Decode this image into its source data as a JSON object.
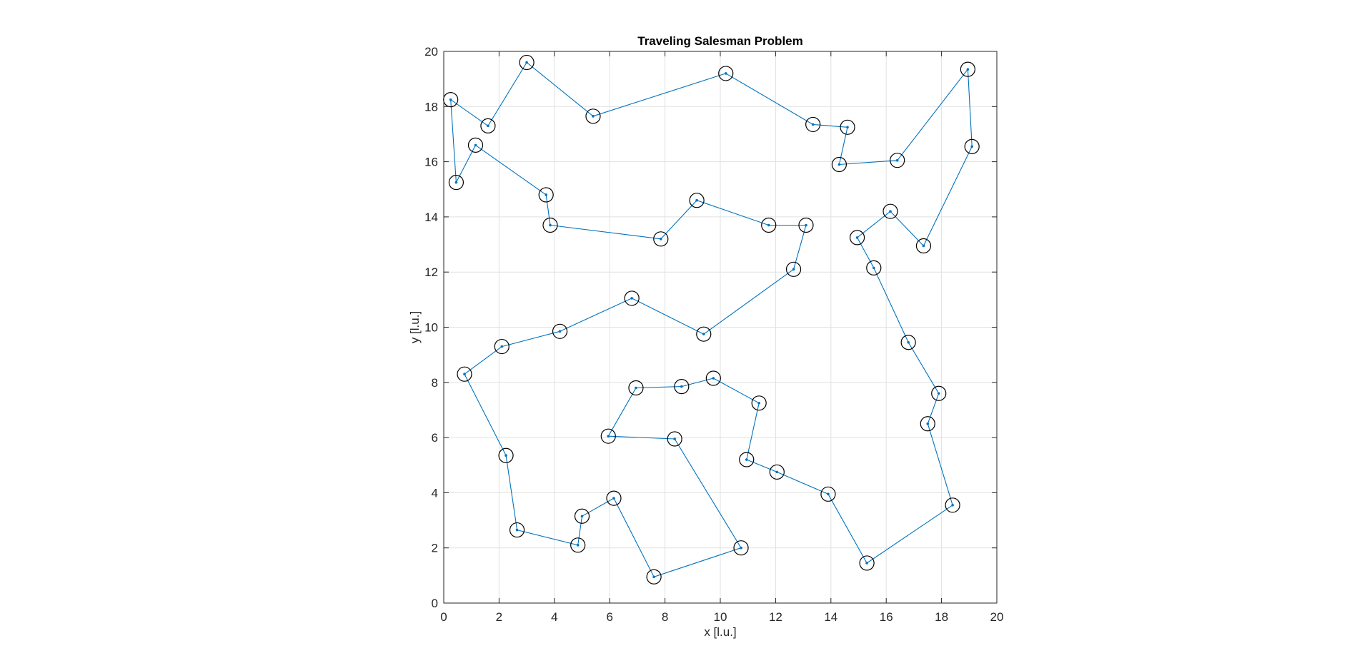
{
  "chart_data": {
    "type": "line",
    "title": "Traveling Salesman Problem",
    "xlabel": "x [l.u.]",
    "ylabel": "y [l.u.]",
    "xlim": [
      0,
      20
    ],
    "ylim": [
      0,
      20
    ],
    "xticks": [
      0,
      2,
      4,
      6,
      8,
      10,
      12,
      14,
      16,
      18,
      20
    ],
    "yticks": [
      0,
      2,
      4,
      6,
      8,
      10,
      12,
      14,
      16,
      18,
      20
    ],
    "grid": true,
    "colors": {
      "route": "#0072BD",
      "city_marker": "#000000",
      "city_dot": "#0072BD",
      "grid": "#e1e1e1",
      "axis": "#262626"
    },
    "series": [
      {
        "points": [
          [
            0.25,
            18.25
          ],
          [
            0.45,
            15.25
          ],
          [
            1.15,
            16.6
          ],
          [
            3.7,
            14.8
          ],
          [
            3.85,
            13.7
          ],
          [
            7.85,
            13.2
          ],
          [
            9.15,
            14.6
          ],
          [
            11.75,
            13.7
          ],
          [
            13.1,
            13.7
          ],
          [
            12.65,
            12.1
          ],
          [
            9.4,
            9.75
          ],
          [
            6.8,
            11.05
          ],
          [
            4.2,
            9.85
          ],
          [
            2.1,
            9.3
          ],
          [
            0.75,
            8.3
          ],
          [
            2.25,
            5.35
          ],
          [
            2.65,
            2.65
          ],
          [
            4.85,
            2.1
          ],
          [
            5.0,
            3.15
          ],
          [
            6.15,
            3.8
          ],
          [
            7.6,
            0.95
          ],
          [
            10.75,
            2.0
          ],
          [
            8.35,
            5.95
          ],
          [
            5.95,
            6.05
          ],
          [
            6.95,
            7.8
          ],
          [
            8.6,
            7.85
          ],
          [
            9.75,
            8.15
          ],
          [
            11.4,
            7.25
          ],
          [
            10.95,
            5.2
          ],
          [
            12.05,
            4.75
          ],
          [
            13.9,
            3.95
          ],
          [
            15.3,
            1.45
          ],
          [
            18.4,
            3.55
          ],
          [
            17.5,
            6.5
          ],
          [
            17.9,
            7.6
          ],
          [
            16.8,
            9.45
          ],
          [
            15.55,
            12.15
          ],
          [
            14.95,
            13.25
          ],
          [
            16.15,
            14.2
          ],
          [
            17.35,
            12.95
          ],
          [
            19.1,
            16.55
          ],
          [
            18.95,
            19.35
          ],
          [
            16.4,
            16.05
          ],
          [
            14.3,
            15.9
          ],
          [
            14.6,
            17.25
          ],
          [
            13.35,
            17.35
          ],
          [
            10.2,
            19.2
          ],
          [
            5.4,
            17.65
          ],
          [
            3.0,
            19.6
          ],
          [
            1.6,
            17.3
          ],
          [
            0.25,
            18.25
          ]
        ]
      }
    ]
  }
}
